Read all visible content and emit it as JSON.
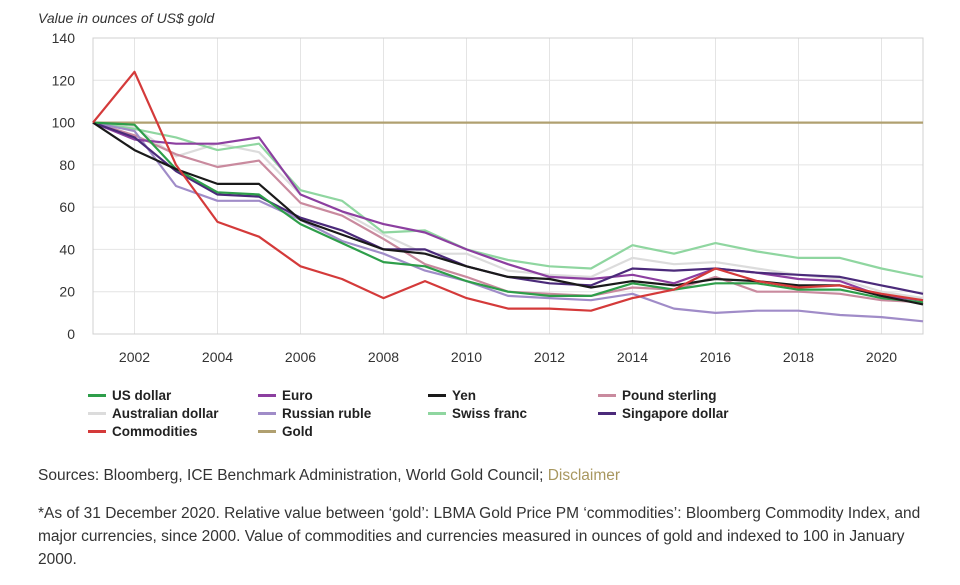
{
  "chart_data": {
    "type": "line",
    "ylabel": "Value in ounces of US$ gold",
    "ylim": [
      0,
      140
    ],
    "xlim": [
      2001,
      2021
    ],
    "yticks": [
      0,
      20,
      40,
      60,
      80,
      100,
      120,
      140
    ],
    "xticks": [
      2002,
      2004,
      2006,
      2008,
      2010,
      2012,
      2014,
      2016,
      2018,
      2020
    ],
    "grid": true,
    "legend_position": "bottom",
    "x": [
      2001,
      2002,
      2003,
      2004,
      2005,
      2006,
      2007,
      2008,
      2009,
      2010,
      2011,
      2012,
      2013,
      2014,
      2015,
      2016,
      2017,
      2018,
      2019,
      2020,
      2021
    ],
    "series": [
      {
        "name": "US dollar",
        "color": "#2e9e4a",
        "values": [
          100,
          99,
          78,
          67,
          66,
          52,
          43,
          34,
          32,
          25,
          20,
          18,
          18,
          24,
          21,
          24,
          24,
          21,
          21,
          17,
          15
        ]
      },
      {
        "name": "Euro",
        "color": "#8c3fa0",
        "values": [
          100,
          92,
          90,
          90,
          93,
          66,
          58,
          52,
          48,
          40,
          33,
          27,
          26,
          28,
          24,
          31,
          29,
          26,
          25,
          18,
          16
        ]
      },
      {
        "name": "Yen",
        "color": "#1a1a1a",
        "values": [
          100,
          87,
          78,
          71,
          71,
          54,
          47,
          40,
          38,
          32,
          27,
          26,
          22,
          25,
          23,
          26,
          25,
          23,
          23,
          18,
          14
        ]
      },
      {
        "name": "Pound sterling",
        "color": "#c98a9e",
        "values": [
          100,
          94,
          85,
          79,
          82,
          62,
          56,
          45,
          33,
          27,
          20,
          19,
          18,
          22,
          21,
          27,
          20,
          20,
          19,
          16,
          15
        ]
      },
      {
        "name": "Australian dollar",
        "color": "#dcdcdc",
        "values": [
          100,
          98,
          84,
          90,
          86,
          66,
          58,
          47,
          38,
          38,
          30,
          28,
          27,
          36,
          33,
          34,
          31,
          28,
          26,
          20,
          17
        ]
      },
      {
        "name": "Russian ruble",
        "color": "#a08cc8",
        "values": [
          100,
          96,
          70,
          63,
          63,
          54,
          44,
          38,
          30,
          25,
          18,
          17,
          16,
          19,
          12,
          10,
          11,
          11,
          9,
          8,
          6
        ]
      },
      {
        "name": "Swiss franc",
        "color": "#8fd6a0",
        "values": [
          100,
          97,
          93,
          87,
          90,
          68,
          63,
          48,
          49,
          40,
          35,
          32,
          31,
          42,
          38,
          43,
          39,
          36,
          36,
          31,
          27
        ]
      },
      {
        "name": "Singapore dollar",
        "color": "#4b2a7a",
        "values": [
          100,
          93,
          77,
          66,
          65,
          55,
          49,
          40,
          40,
          32,
          27,
          24,
          23,
          31,
          30,
          31,
          29,
          28,
          27,
          23,
          19
        ]
      },
      {
        "name": "Commodities",
        "color": "#d43a3a",
        "values": [
          100,
          124,
          80,
          53,
          46,
          32,
          26,
          17,
          25,
          17,
          12,
          12,
          11,
          17,
          21,
          31,
          25,
          22,
          23,
          19,
          16
        ]
      },
      {
        "name": "Gold",
        "color": "#b0a070",
        "values": [
          100,
          100,
          100,
          100,
          100,
          100,
          100,
          100,
          100,
          100,
          100,
          100,
          100,
          100,
          100,
          100,
          100,
          100,
          100,
          100,
          100
        ]
      }
    ]
  },
  "sources": {
    "text": "Sources: Bloomberg, ICE Benchmark Administration, World Gold Council; ",
    "link": "Disclaimer"
  },
  "footnote": "*As of 31 December 2020. Relative value between ‘gold’: LBMA Gold Price PM ‘commodities’: Bloomberg Commodity Index, and major currencies, since 2000. Value of commodities and currencies measured in ounces of gold and indexed to 100 in January 2000."
}
